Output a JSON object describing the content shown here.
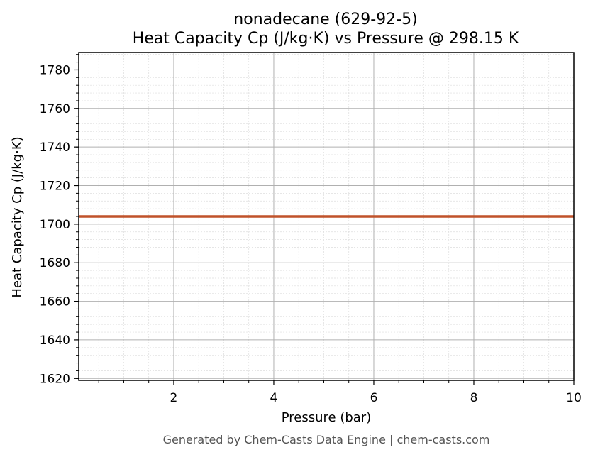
{
  "chart_data": {
    "type": "line",
    "title": "nonadecane (629-92-5)",
    "subtitle": "Heat Capacity Cp (J/kg·K) vs Pressure @ 298.15 K",
    "xlabel": "Pressure (bar)",
    "ylabel": "Heat Capacity Cp (J/kg·K)",
    "xlim": [
      0.1,
      10
    ],
    "ylim": [
      1619,
      1789
    ],
    "x_ticks": [
      2,
      4,
      6,
      8,
      10
    ],
    "y_ticks": [
      1620,
      1640,
      1660,
      1680,
      1700,
      1720,
      1740,
      1760,
      1780
    ],
    "grid": true,
    "minor_grid": true,
    "series": [
      {
        "color": "#c0522a",
        "x": [
          0.1,
          10
        ],
        "y": [
          1704,
          1704
        ]
      }
    ]
  },
  "footer": "Generated by Chem-Casts Data Engine | chem-casts.com"
}
